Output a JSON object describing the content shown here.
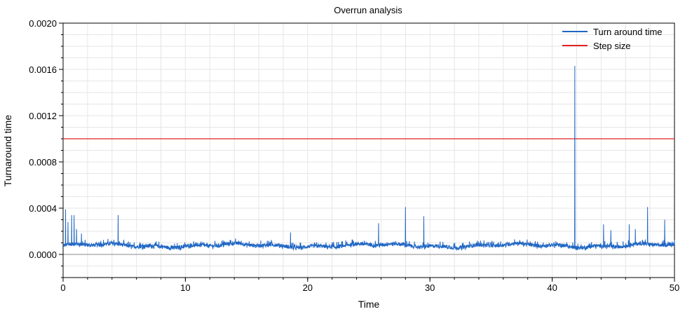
{
  "chart_data": {
    "type": "line",
    "title": "Overrun analysis",
    "xlabel": "Time",
    "ylabel": "Turnaround time",
    "xlim": [
      0,
      50
    ],
    "ylim": [
      -0.0002,
      0.002
    ],
    "x_ticks": [
      "0",
      "10",
      "20",
      "30",
      "40",
      "50"
    ],
    "x_tick_values": [
      0,
      10,
      20,
      30,
      40,
      50
    ],
    "y_ticks": [
      "0.0000",
      "0.0004",
      "0.0008",
      "0.0012",
      "0.0016",
      "0.0020"
    ],
    "y_tick_values": [
      0,
      0.0004,
      0.0008,
      0.0012,
      0.0016,
      0.002
    ],
    "grid": true,
    "legend_position": "top-right",
    "series": [
      {
        "name": "Turn around time",
        "color": "#1f66c4",
        "baseline": 7e-05,
        "noise_amplitude": 4e-05,
        "spikes": [
          {
            "x": 0.2,
            "y": 0.00039
          },
          {
            "x": 0.4,
            "y": 0.00028
          },
          {
            "x": 0.7,
            "y": 0.00034
          },
          {
            "x": 0.9,
            "y": 0.00034
          },
          {
            "x": 1.1,
            "y": 0.00022
          },
          {
            "x": 1.5,
            "y": 0.00018
          },
          {
            "x": 4.5,
            "y": 0.00034
          },
          {
            "x": 18.6,
            "y": 0.00019
          },
          {
            "x": 25.8,
            "y": 0.00027
          },
          {
            "x": 28.0,
            "y": 0.00041
          },
          {
            "x": 29.5,
            "y": 0.00033
          },
          {
            "x": 41.85,
            "y": 0.00163
          },
          {
            "x": 44.2,
            "y": 0.00026
          },
          {
            "x": 44.8,
            "y": 0.00021
          },
          {
            "x": 46.3,
            "y": 0.00026
          },
          {
            "x": 46.8,
            "y": 0.00022
          },
          {
            "x": 47.8,
            "y": 0.00041
          },
          {
            "x": 49.2,
            "y": 0.0003
          }
        ]
      },
      {
        "name": "Step size",
        "color": "#e02020",
        "x": [
          0,
          50
        ],
        "values": [
          0.001,
          0.001
        ]
      }
    ]
  }
}
